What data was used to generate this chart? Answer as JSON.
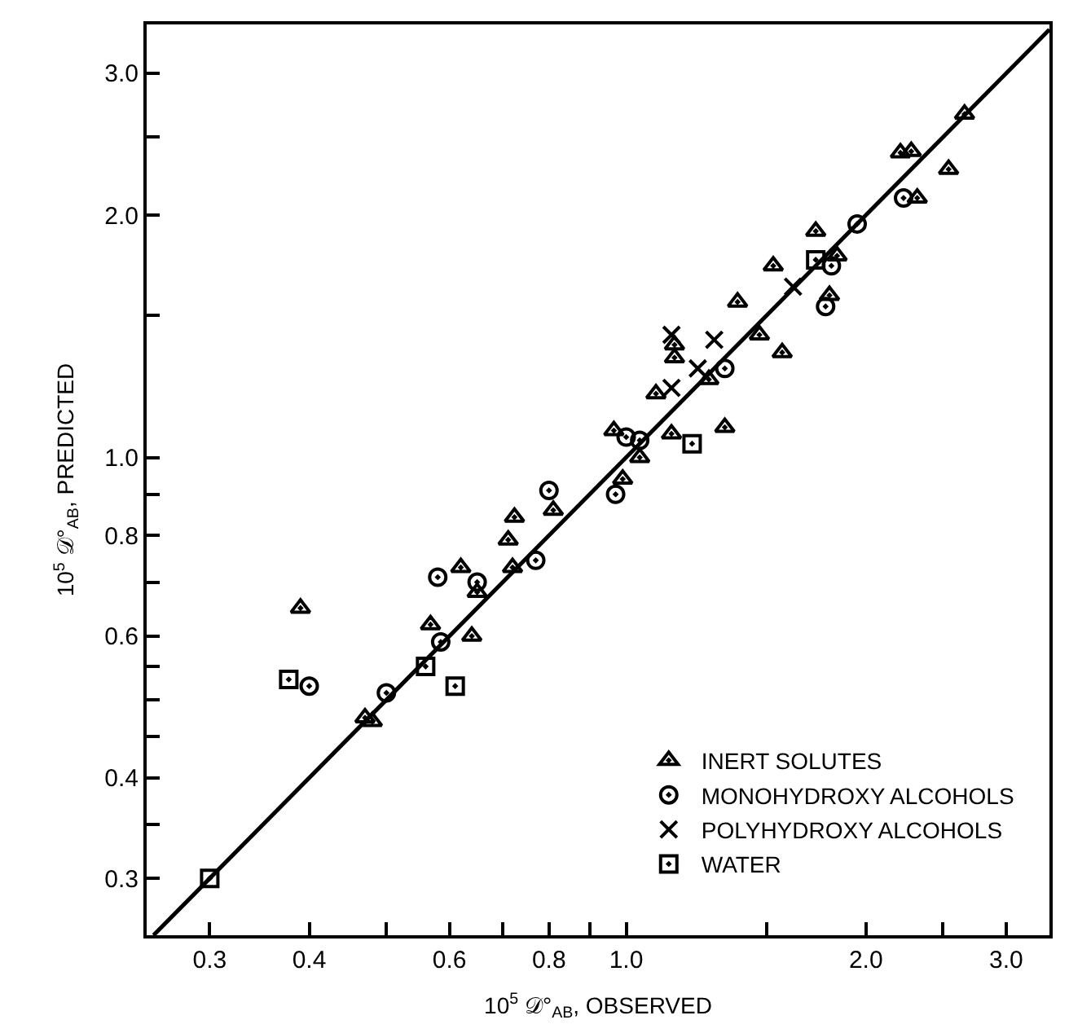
{
  "chart_data": {
    "type": "scatter",
    "xlabel": "10$^{5}$ 𝒟°$_{AB}$, OBSERVED",
    "ylabel": "10$^{5}$ 𝒟°$_{AB}$, PREDICTED",
    "log": "xy",
    "xlim": [
      0.25,
      3.4
    ],
    "ylim": [
      0.255,
      3.45
    ],
    "xticks": [
      {
        "value": 0.3,
        "label": "0.3"
      },
      {
        "value": 0.4,
        "label": "0.4"
      },
      {
        "value": 0.5,
        "label": null
      },
      {
        "value": 0.6,
        "label": "0.6"
      },
      {
        "value": 0.7,
        "label": null
      },
      {
        "value": 0.8,
        "label": "0.8"
      },
      {
        "value": 0.9,
        "label": null
      },
      {
        "value": 1.0,
        "label": "1.0"
      },
      {
        "value": 1.5,
        "label": null
      },
      {
        "value": 2.0,
        "label": "2.0"
      },
      {
        "value": 2.5,
        "label": null
      },
      {
        "value": 3.0,
        "label": "3.0"
      }
    ],
    "yticks": [
      {
        "value": 0.3,
        "label": "0.3"
      },
      {
        "value": 0.35,
        "label": null
      },
      {
        "value": 0.4,
        "label": "0.4"
      },
      {
        "value": 0.45,
        "label": null
      },
      {
        "value": 0.5,
        "label": null
      },
      {
        "value": 0.55,
        "label": null
      },
      {
        "value": 0.6,
        "label": "0.6"
      },
      {
        "value": 0.7,
        "label": null
      },
      {
        "value": 0.8,
        "label": "0.8"
      },
      {
        "value": 0.9,
        "label": null
      },
      {
        "value": 1.0,
        "label": "1.0"
      },
      {
        "value": 1.5,
        "label": null
      },
      {
        "value": 2.0,
        "label": "2.0"
      },
      {
        "value": 2.5,
        "label": null
      },
      {
        "value": 3.0,
        "label": "3.0"
      }
    ],
    "legend": "bottom right",
    "series": [
      {
        "name": "INERT SOLUTES",
        "color": "#000000",
        "marker": "triangle",
        "x": [
          2.66,
          2.21,
          2.28,
          2.54,
          2.32,
          1.73,
          1.84,
          1.53,
          1.8,
          1.38,
          1.47,
          1.57,
          1.15,
          1.15,
          1.27,
          1.09,
          0.965,
          1.14,
          1.33,
          1.04,
          0.99,
          0.81,
          0.724,
          0.711,
          0.72,
          0.62,
          0.65,
          0.39,
          0.568,
          0.64,
          0.47,
          0.48
        ],
        "values": [
          2.67,
          2.39,
          2.4,
          2.28,
          2.1,
          1.91,
          1.78,
          1.73,
          1.59,
          1.56,
          1.42,
          1.35,
          1.38,
          1.33,
          1.25,
          1.2,
          1.08,
          1.07,
          1.09,
          1.0,
          0.94,
          0.86,
          0.843,
          0.79,
          0.73,
          0.73,
          0.68,
          0.65,
          0.62,
          0.6,
          0.475,
          0.47
        ]
      },
      {
        "name": "MONOHYDROXY ALCOHOLS",
        "color": "#000000",
        "marker": "circle",
        "x": [
          2.23,
          1.95,
          1.81,
          1.78,
          1.33,
          1.0,
          1.04,
          0.97,
          0.8,
          0.77,
          0.58,
          0.65,
          0.585,
          0.4,
          0.5
        ],
        "values": [
          2.1,
          1.95,
          1.73,
          1.54,
          1.29,
          1.06,
          1.05,
          0.9,
          0.91,
          0.745,
          0.71,
          0.7,
          0.59,
          0.52,
          0.51
        ]
      },
      {
        "name": "POLYHYDROXY ALCOHOLS",
        "color": "#000000",
        "marker": "cross",
        "x": [
          1.62,
          1.14,
          1.29,
          1.23,
          1.14
        ],
        "values": [
          1.63,
          1.42,
          1.4,
          1.29,
          1.22
        ]
      },
      {
        "name": "WATER",
        "color": "#000000",
        "marker": "square",
        "x": [
          1.73,
          1.21,
          0.56,
          0.377,
          0.61,
          0.3
        ],
        "values": [
          1.76,
          1.04,
          0.55,
          0.53,
          0.52,
          0.3
        ]
      },
      {
        "type": "line",
        "color": "#000000",
        "marker": "none",
        "line_style": "solid",
        "x": [
          0.255,
          3.4
        ],
        "values": [
          0.255,
          3.4
        ]
      }
    ]
  }
}
